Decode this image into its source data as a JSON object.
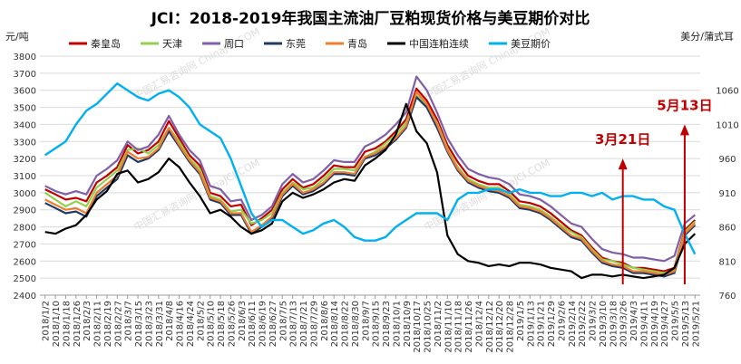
{
  "chart_data": {
    "type": "line",
    "title": "JCI：2018-2019年我国主流油厂豆粕现货价格与美豆期价对比",
    "ylabel_left": "元/吨",
    "ylabel_right": "美分/蒲式耳",
    "ylim_left": [
      2400,
      3800
    ],
    "ylim_right": [
      760,
      1110
    ],
    "yticks_left": [
      2400,
      2500,
      2600,
      2700,
      2800,
      2900,
      3000,
      3100,
      3200,
      3300,
      3400,
      3500,
      3600,
      3700,
      3800
    ],
    "yticks_right": [
      760,
      810,
      860,
      910,
      960,
      1010,
      1060
    ],
    "grid": true,
    "legend_position": "top",
    "categories": [
      "2018/1/2",
      "2018/1/10",
      "2018/1/18",
      "2018/1/26",
      "2018/2/3",
      "2018/2/11",
      "2018/2/19",
      "2018/2/27",
      "2018/3/7",
      "2018/3/15",
      "2018/3/23",
      "2018/3/31",
      "2018/4/8",
      "2018/4/16",
      "2018/4/24",
      "2018/5/2",
      "2018/5/10",
      "2018/5/18",
      "2018/5/26",
      "2018/6/3",
      "2018/6/11",
      "2018/6/19",
      "2018/6/27",
      "2018/7/5",
      "2018/7/13",
      "2018/7/21",
      "2018/7/29",
      "2018/8/6",
      "2018/8/14",
      "2018/8/22",
      "2018/8/30",
      "2018/9/7",
      "2018/9/15",
      "2018/9/23",
      "2018/10/1",
      "2018/10/9",
      "2018/10/17",
      "2018/10/25",
      "2018/11/2",
      "2018/11/10",
      "2018/11/18",
      "2018/11/26",
      "2018/12/4",
      "2018/12/12",
      "2018/12/20",
      "2018/12/28",
      "2019/1/5",
      "2019/1/13",
      "2019/1/21",
      "2019/1/29",
      "2019/2/6",
      "2019/2/14",
      "2019/2/22",
      "2019/3/2",
      "2019/3/10",
      "2019/3/18",
      "2019/3/26",
      "2019/4/3",
      "2019/4/11",
      "2019/4/19",
      "2019/4/27",
      "2019/5/5",
      "2019/5/13",
      "2019/5/21"
    ],
    "series": [
      {
        "name": "秦皇岛",
        "color": "#c00000",
        "axis": "left",
        "values": [
          3020,
          2990,
          2960,
          2970,
          2950,
          3060,
          3100,
          3150,
          3280,
          3230,
          3250,
          3300,
          3420,
          3320,
          3220,
          3160,
          3000,
          2980,
          2920,
          2930,
          2810,
          2850,
          2900,
          3020,
          3080,
          3030,
          3050,
          3100,
          3160,
          3150,
          3150,
          3240,
          3260,
          3300,
          3360,
          3430,
          3610,
          3540,
          3430,
          3280,
          3180,
          3100,
          3070,
          3050,
          3050,
          3010,
          2950,
          2940,
          2920,
          2880,
          2830,
          2780,
          2750,
          2680,
          2620,
          2600,
          2590,
          2560,
          2560,
          2550,
          2540,
          2560,
          2780,
          2840
        ]
      },
      {
        "name": "天津",
        "color": "#92d050",
        "axis": "left",
        "values": [
          3000,
          2960,
          2920,
          2950,
          2920,
          3030,
          3080,
          3130,
          3250,
          3260,
          3230,
          3280,
          3380,
          3300,
          3200,
          3140,
          2980,
          2960,
          2890,
          2900,
          2820,
          2840,
          2880,
          3000,
          3060,
          3020,
          3030,
          3080,
          3140,
          3140,
          3130,
          3210,
          3240,
          3290,
          3340,
          3410,
          3570,
          3510,
          3410,
          3260,
          3150,
          3080,
          3050,
          3030,
          3030,
          2990,
          2930,
          2920,
          2900,
          2860,
          2810,
          2770,
          2740,
          2670,
          2610,
          2600,
          2580,
          2560,
          2550,
          2540,
          2530,
          2550,
          2770,
          2830
        ]
      },
      {
        "name": "周口",
        "color": "#7f5fa8",
        "axis": "left",
        "values": [
          3040,
          3010,
          2990,
          3010,
          2990,
          3100,
          3140,
          3190,
          3300,
          3250,
          3270,
          3340,
          3450,
          3340,
          3250,
          3190,
          3040,
          3020,
          2950,
          2960,
          2840,
          2870,
          2920,
          3050,
          3110,
          3060,
          3080,
          3130,
          3190,
          3180,
          3180,
          3270,
          3300,
          3340,
          3400,
          3470,
          3680,
          3600,
          3470,
          3320,
          3220,
          3140,
          3110,
          3090,
          3080,
          3050,
          2990,
          2980,
          2960,
          2920,
          2870,
          2820,
          2800,
          2730,
          2670,
          2650,
          2640,
          2620,
          2620,
          2610,
          2600,
          2630,
          2820,
          2870
        ]
      },
      {
        "name": "东莞",
        "color": "#1f3864",
        "axis": "left",
        "values": [
          2940,
          2910,
          2880,
          2890,
          2860,
          2980,
          3030,
          3080,
          3220,
          3180,
          3200,
          3250,
          3360,
          3270,
          3180,
          3110,
          2960,
          2940,
          2870,
          2870,
          2760,
          2800,
          2850,
          2980,
          3040,
          2990,
          3010,
          3050,
          3110,
          3110,
          3100,
          3200,
          3220,
          3260,
          3310,
          3380,
          3560,
          3500,
          3380,
          3240,
          3130,
          3060,
          3030,
          3010,
          3000,
          2970,
          2910,
          2900,
          2880,
          2840,
          2790,
          2740,
          2720,
          2650,
          2590,
          2570,
          2560,
          2530,
          2530,
          2520,
          2510,
          2530,
          2750,
          2810
        ]
      },
      {
        "name": "青岛",
        "color": "#ed7d31",
        "axis": "left",
        "values": [
          2960,
          2930,
          2900,
          2910,
          2880,
          3000,
          3050,
          3100,
          3240,
          3200,
          3210,
          3260,
          3380,
          3280,
          3190,
          3120,
          2970,
          2950,
          2880,
          2880,
          2770,
          2810,
          2860,
          2990,
          3050,
          3000,
          3020,
          3060,
          3120,
          3120,
          3110,
          3210,
          3230,
          3270,
          3320,
          3390,
          3590,
          3520,
          3400,
          3250,
          3140,
          3070,
          3040,
          3020,
          3010,
          2980,
          2920,
          2910,
          2890,
          2850,
          2800,
          2750,
          2730,
          2660,
          2600,
          2580,
          2570,
          2540,
          2540,
          2530,
          2520,
          2540,
          2760,
          2820
        ]
      },
      {
        "name": "中国连粕连续",
        "color": "#000000",
        "axis": "left",
        "values": [
          2770,
          2760,
          2790,
          2810,
          2870,
          2960,
          3010,
          3110,
          3130,
          3060,
          3080,
          3120,
          3200,
          3150,
          3060,
          2980,
          2880,
          2900,
          2860,
          2800,
          2760,
          2780,
          2820,
          2950,
          3000,
          2970,
          2990,
          3020,
          3060,
          3080,
          3070,
          3160,
          3200,
          3250,
          3340,
          3520,
          3360,
          3290,
          3120,
          2750,
          2640,
          2600,
          2590,
          2570,
          2580,
          2570,
          2590,
          2590,
          2580,
          2560,
          2550,
          2540,
          2500,
          2520,
          2520,
          2510,
          2520,
          2510,
          2500,
          2510,
          2520,
          2560,
          2700,
          2760
        ]
      },
      {
        "name": "美豆期价",
        "color": "#00b0f0",
        "axis": "right",
        "values": [
          965,
          975,
          985,
          1010,
          1030,
          1040,
          1055,
          1070,
          1060,
          1050,
          1045,
          1055,
          1060,
          1050,
          1035,
          1010,
          1000,
          990,
          960,
          920,
          880,
          860,
          870,
          870,
          860,
          850,
          855,
          865,
          870,
          860,
          845,
          840,
          840,
          845,
          860,
          870,
          880,
          880,
          880,
          870,
          900,
          910,
          910,
          915,
          915,
          910,
          915,
          910,
          910,
          905,
          905,
          910,
          910,
          905,
          910,
          900,
          905,
          905,
          900,
          900,
          890,
          885,
          850,
          820
        ]
      }
    ],
    "annotations": [
      {
        "text": "3月21日",
        "color": "#c00000",
        "x_category": "2019/3/26",
        "y_right": 960
      },
      {
        "text": "5月13日",
        "color": "#c00000",
        "x_category": "2019/5/13",
        "y_right": 1010
      }
    ],
    "watermark": "中国汇易咨询网 ChinaJCI.COM"
  }
}
